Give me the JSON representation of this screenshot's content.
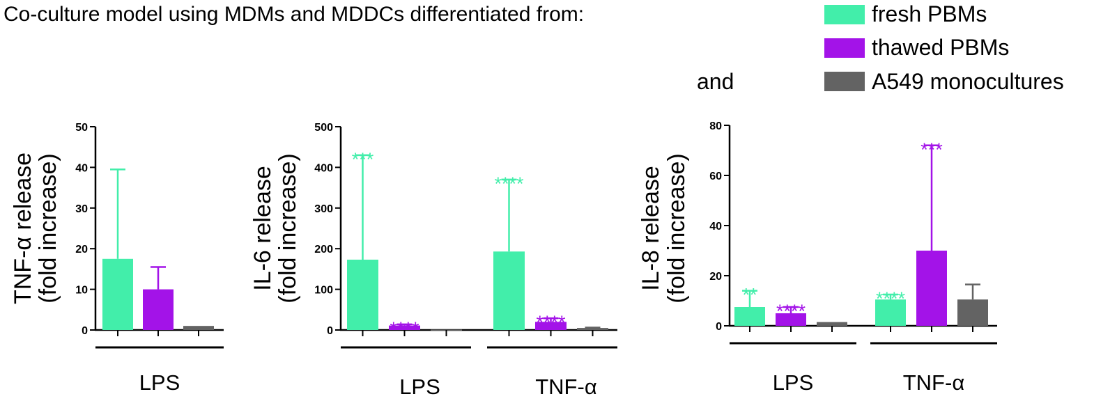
{
  "figure": {
    "title": "Co-culture model using MDMs and MDDCs differentiated from:",
    "and_label": "and"
  },
  "legend": [
    {
      "label": "fresh PBMs",
      "color": "#42eeaa"
    },
    {
      "label": "thawed PBMs",
      "color": "#a313e8"
    },
    {
      "label": "A549 monocultures",
      "color": "#636363"
    }
  ],
  "chart_data": [
    {
      "type": "bar",
      "ylabel": [
        "TNF-α release",
        "(fold increase)"
      ],
      "ylim": [
        0,
        50
      ],
      "yticks": [
        0,
        10,
        20,
        30,
        40,
        50
      ],
      "groups": [
        "LPS"
      ],
      "series": [
        {
          "name": "fresh PBMs",
          "color": "#42eeaa",
          "values": [
            17.5
          ],
          "errors": [
            22
          ],
          "stars": [
            ""
          ]
        },
        {
          "name": "thawed PBMs",
          "color": "#a313e8",
          "values": [
            10
          ],
          "errors": [
            5.5
          ],
          "stars": [
            ""
          ]
        },
        {
          "name": "A549 monocultures",
          "color": "#636363",
          "values": [
            1
          ],
          "errors": [
            0
          ],
          "stars": [
            ""
          ]
        }
      ]
    },
    {
      "type": "bar",
      "ylabel": [
        "IL-6 release",
        "(fold increase)"
      ],
      "ylim": [
        0,
        500
      ],
      "yticks": [
        0,
        100,
        200,
        300,
        400,
        500
      ],
      "groups": [
        "LPS",
        "TNF-α"
      ],
      "series": [
        {
          "name": "fresh PBMs",
          "color": "#42eeaa",
          "values": [
            173,
            193
          ],
          "errors": [
            257,
            177
          ],
          "stars": [
            "***",
            "****"
          ]
        },
        {
          "name": "thawed PBMs",
          "color": "#a313e8",
          "values": [
            11,
            20
          ],
          "errors": [
            3,
            9
          ],
          "stars": [
            "****",
            "****"
          ]
        },
        {
          "name": "A549 monocultures",
          "color": "#636363",
          "values": [
            1,
            5
          ],
          "errors": [
            0,
            1
          ],
          "stars": [
            "",
            ""
          ]
        }
      ]
    },
    {
      "type": "bar",
      "ylabel": [
        "IL-8 release",
        "(fold increase)"
      ],
      "ylim": [
        0,
        80
      ],
      "yticks": [
        0,
        20,
        40,
        60,
        80
      ],
      "groups": [
        "LPS",
        "TNF-α"
      ],
      "series": [
        {
          "name": "fresh PBMs",
          "color": "#42eeaa",
          "values": [
            7.5,
            10.5
          ],
          "errors": [
            6.5,
            2
          ],
          "stars": [
            "**",
            "****"
          ]
        },
        {
          "name": "thawed PBMs",
          "color": "#a313e8",
          "values": [
            5,
            30
          ],
          "errors": [
            2.5,
            42
          ],
          "stars": [
            "****",
            "***"
          ]
        },
        {
          "name": "A549 monocultures",
          "color": "#636363",
          "values": [
            1.5,
            10.5
          ],
          "errors": [
            0,
            6
          ],
          "stars": [
            "",
            ""
          ]
        }
      ]
    }
  ]
}
